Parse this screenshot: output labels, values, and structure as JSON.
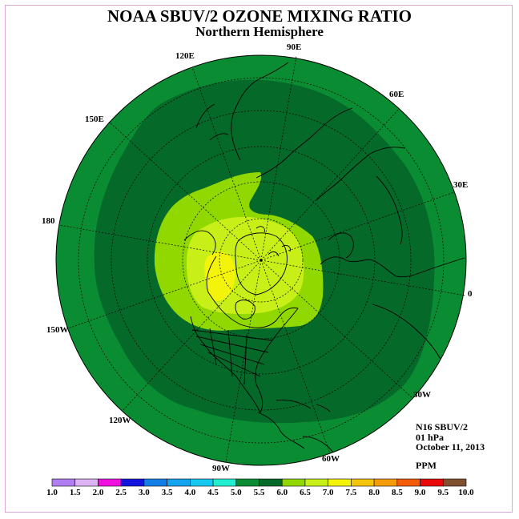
{
  "header": {
    "title": "NOAA SBUV/2 OZONE MIXING RATIO",
    "subtitle": "Northern Hemisphere"
  },
  "map": {
    "projection": "north polar stereographic",
    "longitude_labels": [
      "90E",
      "60E",
      "30E",
      "0",
      "30W",
      "60W",
      "90W",
      "120W",
      "150W",
      "180",
      "150E",
      "120E"
    ],
    "regions": [
      {
        "name": "outer-band",
        "range": "5.0-5.5",
        "color": "#0a8c32"
      },
      {
        "name": "mid-band",
        "range": "5.5-6.0",
        "color": "#05692a"
      },
      {
        "name": "inner-band",
        "range": "6.0-6.5",
        "color": "#90d800"
      },
      {
        "name": "core-band",
        "range": "6.5-7.0",
        "color": "#c8f018"
      },
      {
        "name": "peak-band",
        "range": "7.0-7.5",
        "color": "#f4f40a"
      }
    ]
  },
  "info": {
    "instrument": "N16 SBUV/2",
    "level": "01 hPa",
    "date": "October 11, 2013",
    "units": "PPM"
  },
  "colorbar": {
    "colors": [
      "#b07ef0",
      "#dcb4f4",
      "#f010e0",
      "#1414e0",
      "#147ee8",
      "#14a4f0",
      "#14c8f0",
      "#20f0d0",
      "#0a8c32",
      "#05692a",
      "#90d800",
      "#c8f018",
      "#f4f40a",
      "#f4c40a",
      "#f49c0a",
      "#f45c0a",
      "#e80a0a",
      "#805030"
    ],
    "ticks": [
      "1.0",
      "1.5",
      "2.0",
      "2.5",
      "3.0",
      "3.5",
      "4.0",
      "4.5",
      "5.0",
      "5.5",
      "6.0",
      "6.5",
      "7.0",
      "7.5",
      "8.0",
      "8.5",
      "9.0",
      "9.5",
      "10.0"
    ]
  }
}
